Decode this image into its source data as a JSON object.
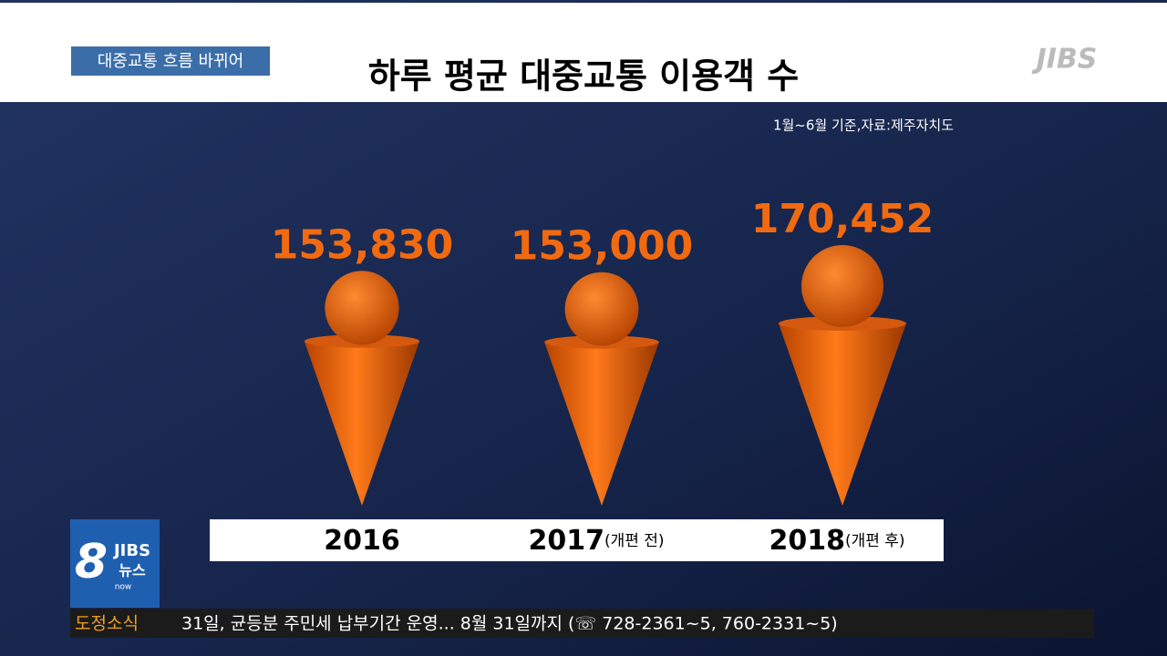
{
  "broadcast": {
    "tag": "대중교통 흐름 바뀌어",
    "logo": "JIBS",
    "logo_box": {
      "number": "8",
      "brand": "JIBS",
      "word": "뉴스",
      "sub": "now"
    },
    "ticker": {
      "label": "도정소식",
      "text": "31일, 균등분 주민세 납부기간 운영... 8월 31일까지 (☏ 728-2361~5, 760-2331~5)"
    }
  },
  "chart_data": {
    "type": "pictogram",
    "title": "하루 평균 대중교통 이용객 수",
    "subtitle": "1월~6월 기준,자료:제주자치도",
    "categories": [
      "2016",
      "2017",
      "2018"
    ],
    "category_notes": [
      null,
      "(개편 전)",
      "(개편 후)"
    ],
    "values": [
      153830,
      153000,
      170452
    ],
    "value_labels": [
      "153,830",
      "153,000",
      "170,452"
    ],
    "color": "#f26a10"
  }
}
